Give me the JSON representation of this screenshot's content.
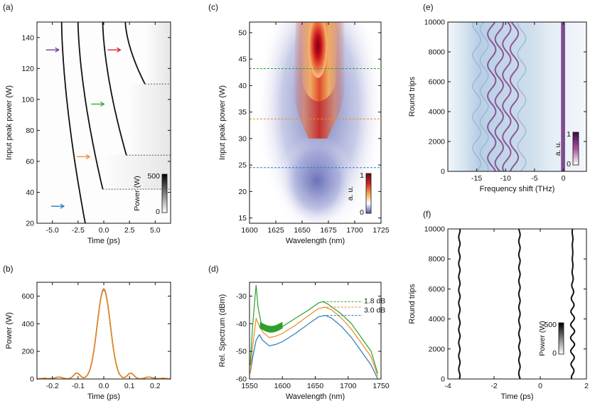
{
  "chart_data": [
    {
      "id": "a",
      "type": "heatmap",
      "panel_label": "(a)",
      "xlabel": "Time (ps)",
      "ylabel": "Input peak power (W)",
      "xlim": [
        -6.5,
        6.5
      ],
      "ylim": [
        20,
        150
      ],
      "xticks": [
        "-5.0",
        "-2.5",
        "0.0",
        "2.5",
        "5.0"
      ],
      "xtick_values": [
        -5,
        -2.5,
        0,
        2.5,
        5
      ],
      "yticks": [
        "20",
        "40",
        "60",
        "80",
        "100",
        "120",
        "140"
      ],
      "ytick_values": [
        20,
        40,
        60,
        80,
        100,
        120,
        140
      ],
      "colorbar": {
        "label": "Power (W)",
        "ticks": [
          "0",
          "500"
        ],
        "range": [
          0,
          500
        ]
      },
      "soliton_traces": [
        {
          "t_at_20W": -1.8,
          "t_at_150W": -4.1
        },
        {
          "t_start": -0.1,
          "p_start": 42,
          "t_at_150W": -2.5
        },
        {
          "t_start": 2.2,
          "p_start": 64,
          "t_at_150W": -0.1
        },
        {
          "t_start": 4.0,
          "p_start": 110,
          "t_at_150W": 2.1
        }
      ],
      "arrows": [
        {
          "color": "#2a7ab8",
          "t": -4.5,
          "p": 31
        },
        {
          "color": "#f08a24",
          "t": -2.0,
          "p": 63
        },
        {
          "color": "#2ca02c",
          "t": -0.6,
          "p": 97
        },
        {
          "color": "#6a3d9a",
          "t": -5.0,
          "p": 132
        },
        {
          "color": "#d62728",
          "t": 1.0,
          "p": 132
        }
      ]
    },
    {
      "id": "b",
      "type": "line",
      "panel_label": "(b)",
      "xlabel": "Time (ps)",
      "ylabel": "Power (W)",
      "xlim": [
        -0.26,
        0.26
      ],
      "ylim": [
        0,
        700
      ],
      "xticks": [
        "-0.2",
        "-0.1",
        "0.0",
        "0.1",
        "0.2"
      ],
      "xtick_values": [
        -0.2,
        -0.1,
        0,
        0.1,
        0.2
      ],
      "yticks": [
        "0",
        "200",
        "400",
        "600"
      ],
      "ytick_values": [
        0,
        200,
        400,
        600
      ],
      "series": [
        {
          "name": "purple",
          "color": "#6a3d9a",
          "peak": 652
        },
        {
          "name": "red",
          "color": "#d62728",
          "peak": 648
        },
        {
          "name": "green",
          "color": "#2ca02c",
          "peak": 645
        },
        {
          "name": "orange",
          "color": "#f08a24",
          "peak": 650
        }
      ],
      "pulse_width_fwhm_ps": 0.06
    },
    {
      "id": "c",
      "type": "heatmap",
      "panel_label": "(c)",
      "xlabel": "Wavelength (nm)",
      "ylabel": "Input peak power (W)",
      "xlim": [
        1600,
        1725
      ],
      "ylim": [
        14,
        52
      ],
      "xticks": [
        "1600",
        "1625",
        "1650",
        "1675",
        "1700",
        "1725"
      ],
      "xtick_values": [
        1600,
        1625,
        1650,
        1675,
        1700,
        1725
      ],
      "yticks": [
        "15",
        "20",
        "25",
        "30",
        "35",
        "40",
        "45",
        "50"
      ],
      "ytick_values": [
        15,
        20,
        25,
        30,
        35,
        40,
        45,
        50
      ],
      "colorbar": {
        "label": "a. u.",
        "ticks": [
          "0",
          "1"
        ],
        "range": [
          0,
          1
        ]
      },
      "hlines": [
        {
          "value": 24.5,
          "color": "#2a7ab8"
        },
        {
          "value": 33.7,
          "color": "#f08a24"
        },
        {
          "value": 43.2,
          "color": "#2ca02c"
        }
      ]
    },
    {
      "id": "d",
      "type": "line",
      "panel_label": "(d)",
      "xlabel": "Wavelength (nm)",
      "ylabel": "Rel. Spectrum (dBm)",
      "xlim": [
        1550,
        1750
      ],
      "ylim": [
        -60,
        -25
      ],
      "xticks": [
        "1550",
        "1600",
        "1650",
        "1700",
        "1750"
      ],
      "xtick_values": [
        1550,
        1600,
        1650,
        1700,
        1750
      ],
      "yticks": [
        "-30",
        "-40",
        "-50",
        "-60"
      ],
      "ytick_values": [
        -30,
        -40,
        -50,
        -60
      ],
      "series": [
        {
          "name": "blue",
          "color": "#2a7ab8",
          "x": [
            1551,
            1555,
            1560,
            1565,
            1570,
            1580,
            1590,
            1600,
            1620,
            1640,
            1655,
            1665,
            1675,
            1690,
            1705,
            1720,
            1735,
            1745
          ],
          "y": [
            -58,
            -52,
            -46,
            -44,
            -46,
            -48,
            -47.5,
            -46.5,
            -43.5,
            -40,
            -37.5,
            -37,
            -38,
            -41,
            -45,
            -50,
            -55,
            -60
          ]
        },
        {
          "name": "orange",
          "color": "#f08a24",
          "x": [
            1551,
            1555,
            1560,
            1565,
            1570,
            1580,
            1590,
            1600,
            1620,
            1640,
            1655,
            1665,
            1675,
            1690,
            1705,
            1720,
            1735,
            1745
          ],
          "y": [
            -58,
            -48,
            -38,
            -41,
            -43,
            -45,
            -44.5,
            -43.5,
            -40.5,
            -37,
            -34.5,
            -34,
            -35,
            -38,
            -42,
            -47,
            -52,
            -59
          ]
        },
        {
          "name": "green",
          "color": "#2ca02c",
          "x": [
            1551,
            1555,
            1560,
            1563,
            1568,
            1575,
            1580,
            1590,
            1600,
            1620,
            1640,
            1655,
            1662,
            1670,
            1690,
            1705,
            1720,
            1735,
            1745
          ],
          "y": [
            -55,
            -40,
            -26,
            -34,
            -40,
            -42,
            -43,
            -42,
            -41,
            -38,
            -35,
            -32.5,
            -32,
            -33,
            -36.5,
            -40,
            -45,
            -50,
            -58
          ]
        }
      ],
      "annotations": [
        {
          "text": "1.8 dB",
          "color": "#f08a24"
        },
        {
          "text": "3.0 dB",
          "color": "#2a7ab8"
        }
      ]
    },
    {
      "id": "e",
      "type": "heatmap",
      "panel_label": "(e)",
      "xlabel": "Frequency shift (THz)",
      "ylabel": "Round trips",
      "xlim": [
        -20,
        4
      ],
      "ylim": [
        0,
        10000
      ],
      "xticks": [
        "-15",
        "-10",
        "-5",
        "0"
      ],
      "xtick_values": [
        -15,
        -10,
        -5,
        0
      ],
      "yticks": [
        "0",
        "2000",
        "4000",
        "6000",
        "8000",
        "10000"
      ],
      "ytick_values": [
        0,
        2000,
        4000,
        6000,
        8000,
        10000
      ],
      "colorbar": {
        "label": "a. u.",
        "ticks": [
          "0",
          "1"
        ],
        "range": [
          0,
          1
        ]
      }
    },
    {
      "id": "f",
      "type": "heatmap",
      "panel_label": "(f)",
      "xlabel": "Time (ps)",
      "ylabel": "Round trips",
      "xlim": [
        -4,
        2
      ],
      "ylim": [
        0,
        10000
      ],
      "xticks": [
        "-4",
        "-2",
        "0",
        "2"
      ],
      "xtick_values": [
        -4,
        -2,
        0,
        2
      ],
      "yticks": [
        "0",
        "2000",
        "4000",
        "6000",
        "8000",
        "10000"
      ],
      "ytick_values": [
        0,
        2000,
        4000,
        6000,
        8000,
        10000
      ],
      "colorbar": {
        "label": "Power (W)",
        "ticks": [
          "0",
          "500"
        ],
        "range": [
          0,
          500
        ]
      },
      "soliton_positions_ps": [
        -3.5,
        -0.9,
        1.4
      ]
    }
  ]
}
